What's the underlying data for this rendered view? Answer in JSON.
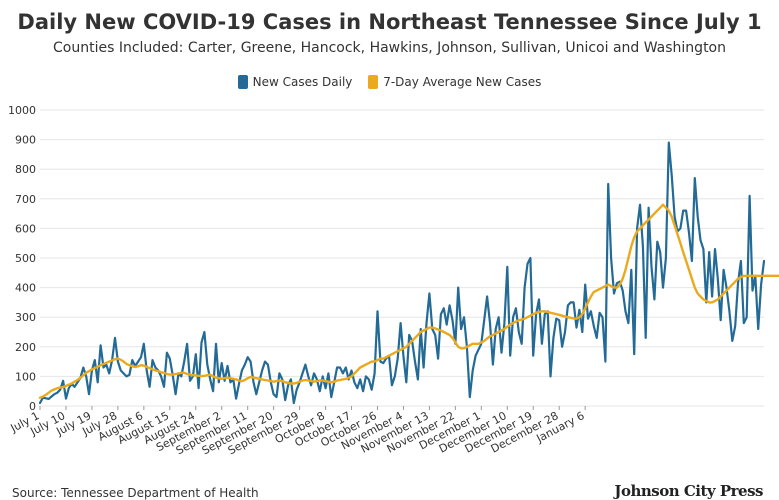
{
  "chart_data": {
    "type": "line",
    "title": "Daily New COVID-19 Cases in Northeast Tennessee Since July 1",
    "subtitle": "Counties Included: Carter, Greene, Hancock, Hawkins, Johnson, Sullivan, Unicoi and Washington",
    "xlabel": "",
    "ylabel": "",
    "ylim": [
      0,
      1000
    ],
    "y_ticks": [
      0,
      100,
      200,
      300,
      400,
      500,
      600,
      700,
      800,
      900,
      1000
    ],
    "x_ticks": [
      "July 1",
      "July 10",
      "July 19",
      "July 28",
      "August 6",
      "August 15",
      "August 24",
      "September 2",
      "September 11",
      "September 20",
      "September 29",
      "October 8",
      "October 17",
      "October 26",
      "November 4",
      "November 13",
      "November 22",
      "December 1",
      "December 10",
      "December 19",
      "December 28",
      "January 6"
    ],
    "x_tick_days": [
      0,
      9,
      18,
      27,
      36,
      45,
      54,
      63,
      72,
      81,
      90,
      99,
      108,
      117,
      126,
      135,
      144,
      153,
      162,
      171,
      180,
      189
    ],
    "grid": true,
    "legend_position": "top-center",
    "series": [
      {
        "name": "New Cases Daily",
        "color": "#236b96",
        "values": [
          10,
          28,
          26,
          24,
          32,
          40,
          45,
          55,
          85,
          25,
          60,
          75,
          65,
          80,
          95,
          130,
          100,
          40,
          120,
          155,
          80,
          205,
          130,
          140,
          110,
          155,
          230,
          150,
          120,
          110,
          100,
          105,
          155,
          135,
          150,
          165,
          210,
          120,
          65,
          155,
          130,
          120,
          100,
          65,
          180,
          160,
          105,
          40,
          110,
          100,
          150,
          210,
          85,
          100,
          175,
          60,
          215,
          250,
          140,
          90,
          50,
          210,
          80,
          145,
          85,
          135,
          80,
          90,
          25,
          75,
          120,
          140,
          165,
          150,
          80,
          40,
          80,
          120,
          150,
          140,
          80,
          40,
          30,
          110,
          90,
          20,
          70,
          90,
          10,
          55,
          80,
          110,
          140,
          100,
          70,
          110,
          90,
          50,
          100,
          60,
          110,
          30,
          80,
          130,
          130,
          110,
          130,
          90,
          120,
          80,
          60,
          90,
          50,
          100,
          90,
          55,
          110,
          320,
          150,
          145,
          160,
          170,
          70,
          100,
          160,
          280,
          170,
          80,
          240,
          220,
          150,
          90,
          260,
          130,
          280,
          380,
          260,
          240,
          160,
          310,
          330,
          275,
          340,
          290,
          210,
          400,
          260,
          300,
          200,
          30,
          120,
          170,
          190,
          210,
          290,
          370,
          280,
          140,
          260,
          300,
          180,
          280,
          470,
          170,
          300,
          330,
          250,
          210,
          400,
          480,
          500,
          170,
          310,
          360,
          210,
          310,
          320,
          100,
          230,
          295,
          290,
          200,
          250,
          340,
          350,
          350,
          265,
          325,
          250,
          410,
          295,
          320,
          270,
          230,
          315,
          300,
          150,
          750,
          500,
          380,
          415,
          420,
          390,
          320,
          280,
          460,
          175,
          600,
          680,
          540,
          230,
          670,
          470,
          360,
          555,
          520,
          400,
          500,
          890,
          780,
          640,
          590,
          600,
          660,
          660,
          585,
          490,
          770,
          640,
          560,
          530,
          350,
          520,
          370,
          530,
          430,
          290,
          460,
          400,
          320,
          220,
          270,
          415,
          490,
          280,
          300,
          710,
          390,
          440,
          260,
          410,
          490
        ]
      },
      {
        "name": "7-Day Average New Cases",
        "color": "#eba91e",
        "values": [
          28,
          32,
          38,
          45,
          52,
          56,
          60,
          62,
          64,
          68,
          72,
          76,
          82,
          88,
          95,
          104,
          112,
          118,
          124,
          128,
          132,
          138,
          142,
          146,
          150,
          154,
          158,
          160,
          156,
          150,
          142,
          138,
          134,
          132,
          134,
          138,
          136,
          132,
          128,
          124,
          120,
          118,
          114,
          112,
          108,
          106,
          106,
          108,
          110,
          112,
          112,
          108,
          106,
          104,
          103,
          102,
          101,
          102,
          104,
          106,
          100,
          96,
          94,
          92,
          94,
          96,
          94,
          92,
          90,
          86,
          84,
          88,
          94,
          98,
          96,
          94,
          92,
          90,
          88,
          86,
          84,
          82,
          84,
          86,
          84,
          80,
          78,
          76,
          76,
          78,
          82,
          86,
          88,
          86,
          84,
          82,
          84,
          86,
          86,
          84,
          82,
          80,
          82,
          86,
          88,
          90,
          92,
          95,
          100,
          110,
          120,
          130,
          135,
          140,
          145,
          150,
          150,
          155,
          160,
          160,
          165,
          170,
          175,
          180,
          185,
          190,
          195,
          200,
          210,
          220,
          230,
          240,
          250,
          255,
          260,
          265,
          265,
          262,
          258,
          255,
          250,
          245,
          240,
          230,
          215,
          200,
          195,
          195,
          200,
          205,
          210,
          210,
          210,
          215,
          220,
          228,
          235,
          240,
          245,
          250,
          255,
          260,
          268,
          275,
          280,
          285,
          290,
          292,
          295,
          300,
          305,
          310,
          315,
          318,
          320,
          320,
          318,
          315,
          313,
          310,
          308,
          305,
          302,
          300,
          298,
          296,
          295,
          300,
          310,
          330,
          350,
          370,
          385,
          390,
          395,
          400,
          405,
          410,
          405,
          400,
          400,
          410,
          430,
          460,
          500,
          540,
          570,
          590,
          600,
          610,
          620,
          630,
          640,
          650,
          660,
          670,
          680,
          670,
          660,
          640,
          610,
          580,
          550,
          520,
          490,
          460,
          430,
          400,
          380,
          370,
          360,
          355,
          350,
          350,
          355,
          360,
          370,
          380,
          390,
          400,
          410,
          420,
          430,
          435,
          440,
          440,
          440,
          440,
          440,
          440,
          440,
          440,
          440,
          440,
          440,
          440,
          440,
          440
        ]
      }
    ]
  },
  "footer": {
    "source": "Source: Tennessee Department of Health",
    "brand": "Johnson City Press"
  }
}
